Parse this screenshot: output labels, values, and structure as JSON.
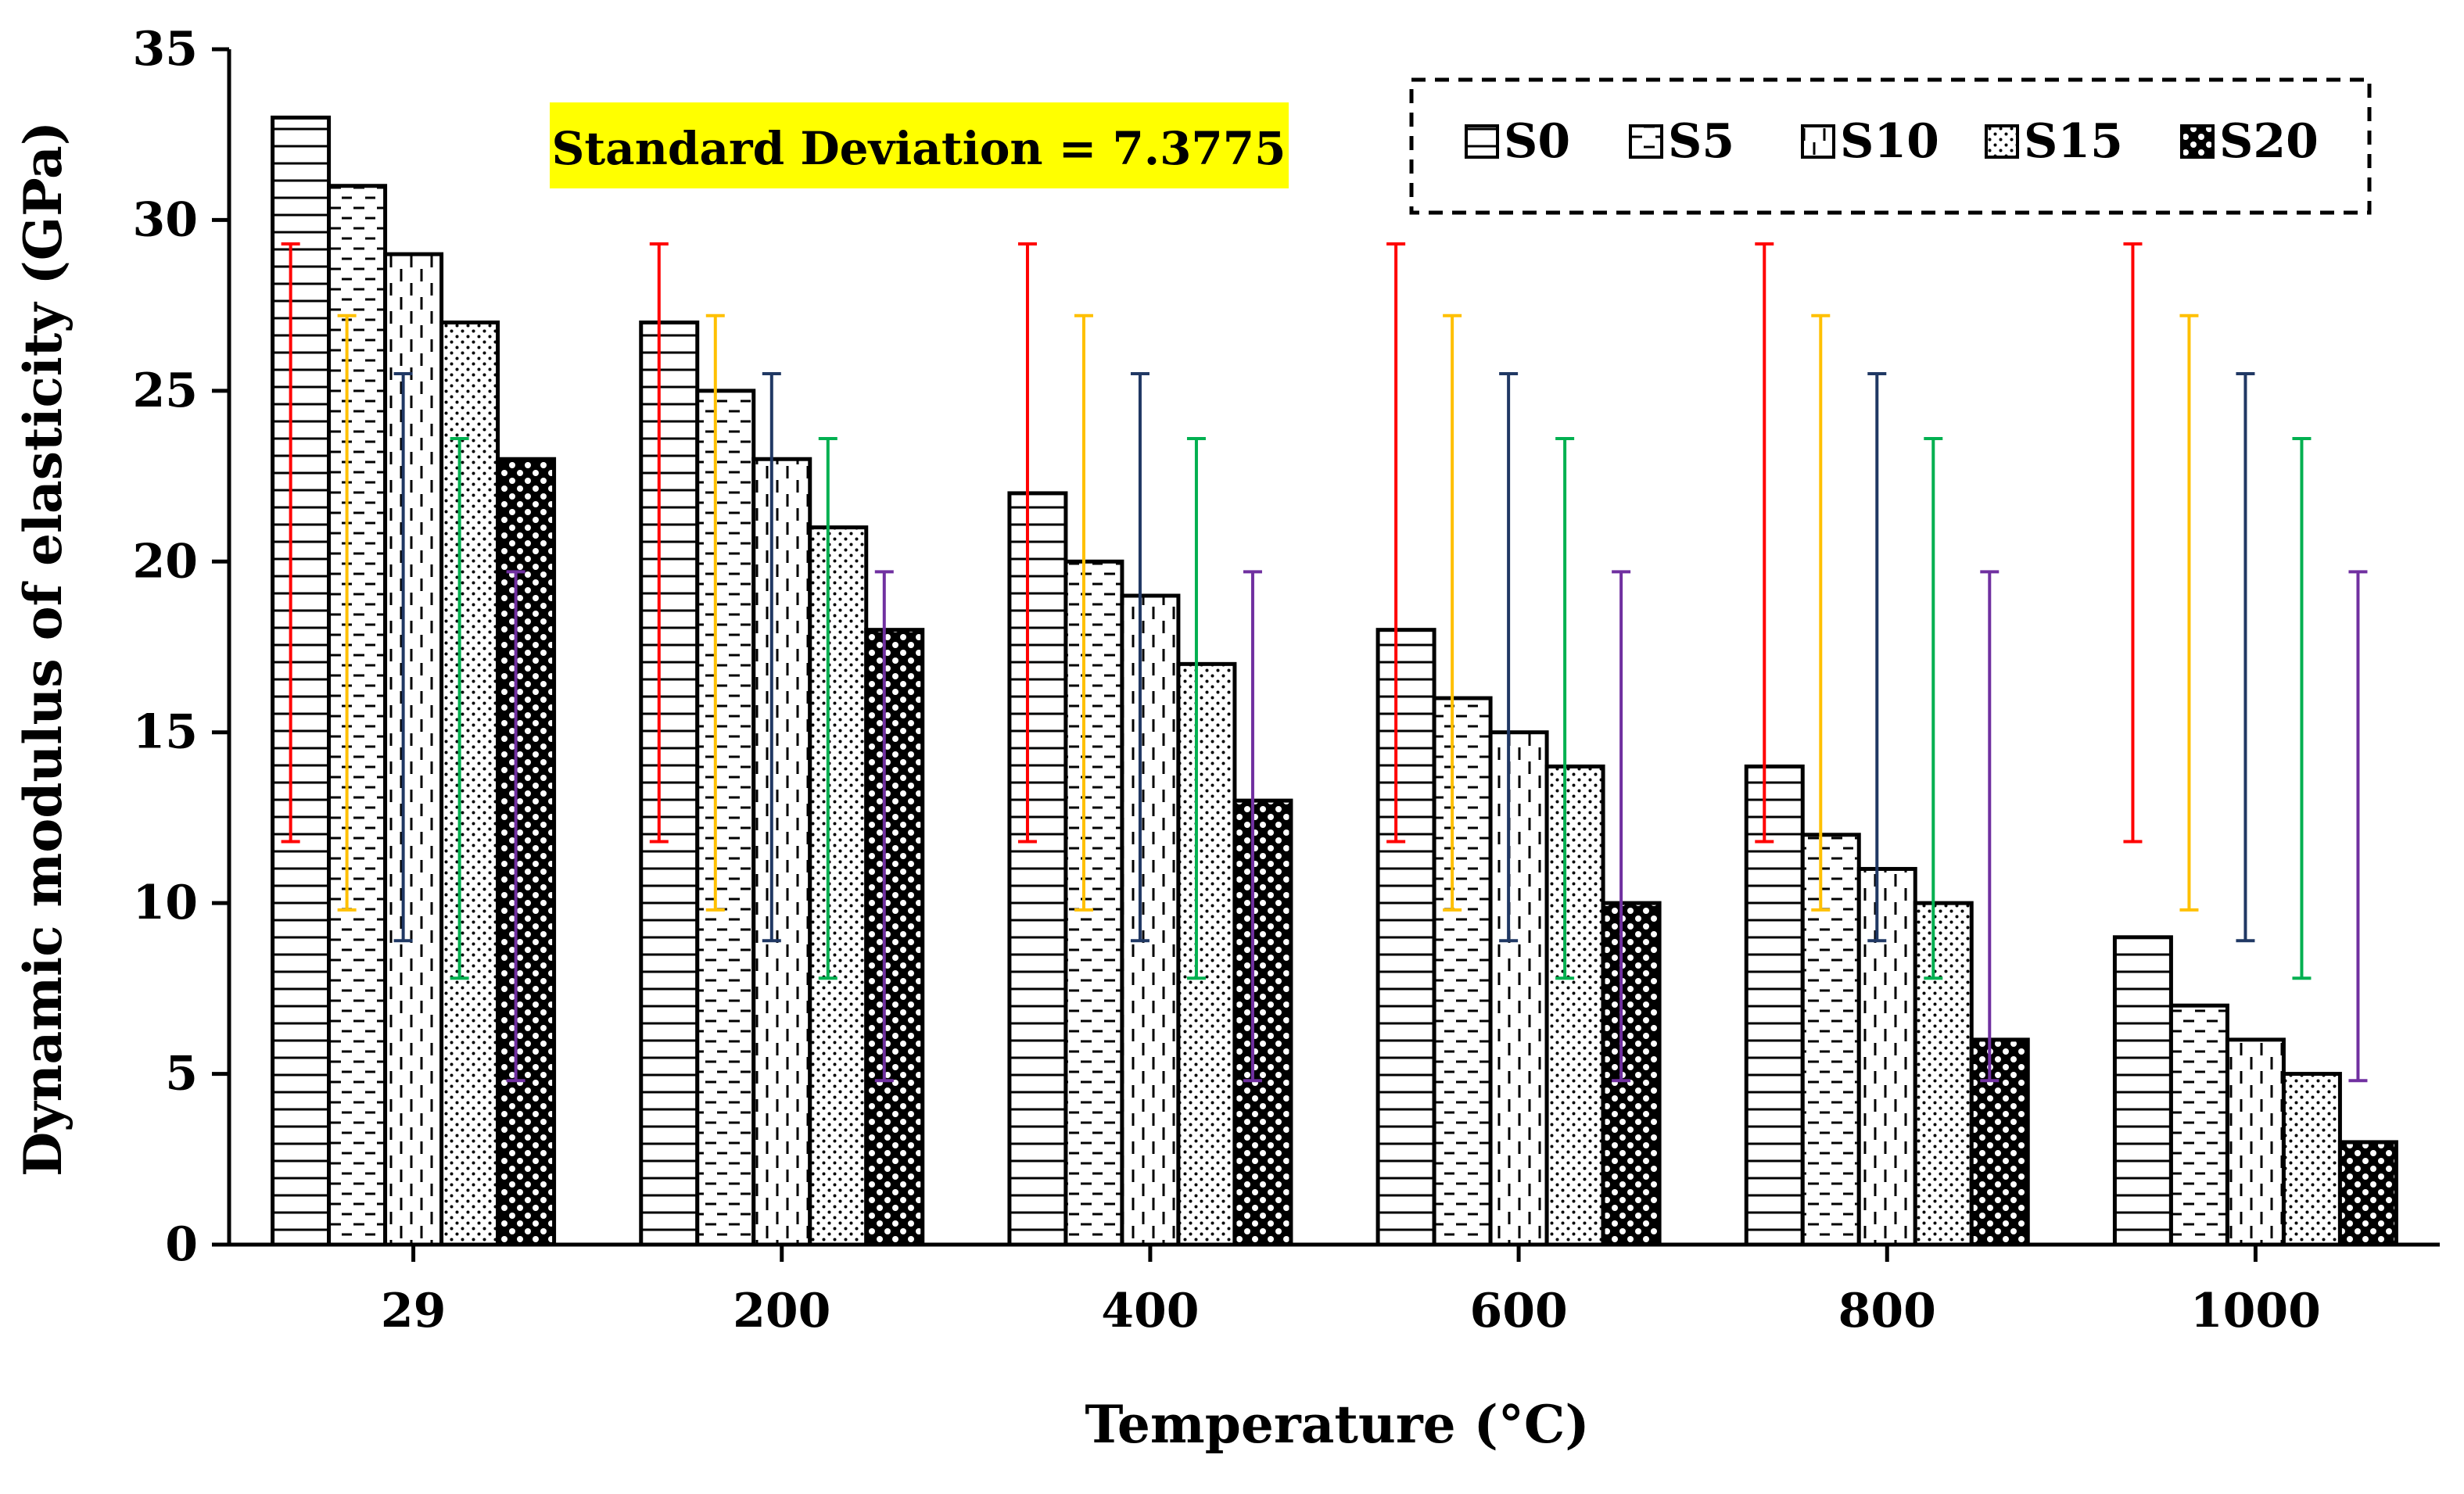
{
  "chart_data": {
    "type": "bar",
    "title": "",
    "annotation": "Standard Deviation = 7.3775",
    "xlabel": "Temperature (°C)",
    "ylabel": "Dynamic modulus of elasticity (GPa)",
    "ylim": [
      0,
      35
    ],
    "yticks": [
      0,
      5,
      10,
      15,
      20,
      25,
      30,
      35
    ],
    "categories": [
      "29",
      "200",
      "400",
      "600",
      "800",
      "1000"
    ],
    "legend_position": "top-right",
    "series": [
      {
        "name": "S0",
        "values": [
          33,
          27,
          22,
          18,
          14,
          9
        ],
        "error_low": 11.8,
        "error_high": 29.3,
        "error_color": "#ff0000",
        "pattern": "hlines"
      },
      {
        "name": "S5",
        "values": [
          31,
          25,
          20,
          16,
          12,
          7
        ],
        "error_low": 9.8,
        "error_high": 27.2,
        "error_color": "#ffc000",
        "pattern": "hdash"
      },
      {
        "name": "S10",
        "values": [
          29,
          23,
          19,
          15,
          11,
          6
        ],
        "error_low": 8.9,
        "error_high": 25.5,
        "error_color": "#203864",
        "pattern": "vdash"
      },
      {
        "name": "S15",
        "values": [
          27,
          21,
          17,
          14,
          10,
          5
        ],
        "error_low": 7.8,
        "error_high": 23.6,
        "error_color": "#00b050",
        "pattern": "dots"
      },
      {
        "name": "S20",
        "values": [
          23,
          18,
          13,
          10,
          6,
          3
        ],
        "error_low": 4.8,
        "error_high": 19.7,
        "error_color": "#7030a0",
        "pattern": "blobs"
      }
    ],
    "colors": {
      "annotation_text": "#ff0000",
      "annotation_bg": "#ffff00"
    }
  }
}
